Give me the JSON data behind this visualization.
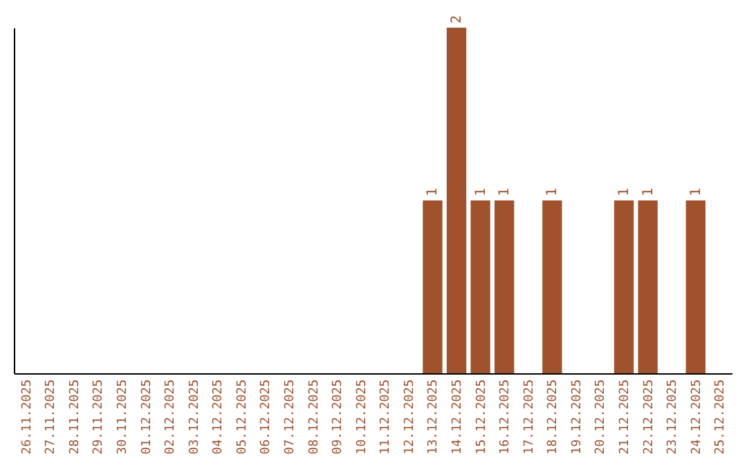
{
  "chart_data": {
    "type": "bar",
    "categories": [
      "26.11.2025",
      "27.11.2025",
      "28.11.2025",
      "29.11.2025",
      "30.11.2025",
      "01.12.2025",
      "02.12.2025",
      "03.12.2025",
      "04.12.2025",
      "05.12.2025",
      "06.12.2025",
      "07.12.2025",
      "08.12.2025",
      "09.12.2025",
      "10.12.2025",
      "11.12.2025",
      "12.12.2025",
      "13.12.2025",
      "14.12.2025",
      "15.12.2025",
      "16.12.2025",
      "17.12.2025",
      "18.12.2025",
      "19.12.2025",
      "20.12.2025",
      "21.12.2025",
      "22.12.2025",
      "23.12.2025",
      "24.12.2025",
      "25.12.2025"
    ],
    "values": [
      null,
      null,
      null,
      null,
      null,
      null,
      null,
      null,
      null,
      null,
      null,
      null,
      null,
      null,
      null,
      null,
      null,
      1,
      2,
      1,
      1,
      null,
      1,
      null,
      null,
      1,
      1,
      null,
      1,
      null
    ],
    "data_labels": true,
    "color": "#a0522d",
    "tick_labels": "x"
  }
}
